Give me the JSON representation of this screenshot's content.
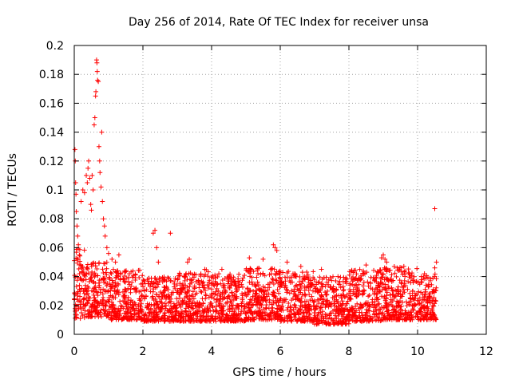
{
  "chart_data": {
    "type": "scatter",
    "title": "Day 256 of 2014, Rate Of TEC Index for receiver unsa",
    "xlabel": "GPS time / hours",
    "ylabel": "ROTI / TECUs",
    "xlim": [
      0,
      12
    ],
    "ylim": [
      0,
      0.2
    ],
    "xticks": [
      0,
      2,
      4,
      6,
      8,
      10,
      12
    ],
    "yticks": [
      0,
      0.02,
      0.04,
      0.06,
      0.08,
      0.1,
      0.12,
      0.14,
      0.16,
      0.18,
      0.2
    ],
    "xtick_labels": [
      "0",
      "2",
      "4",
      "6",
      "8",
      "10",
      "12"
    ],
    "ytick_labels": [
      "0",
      "0.02",
      "0.04",
      "0.06",
      "0.08",
      "0.1",
      "0.12",
      "0.14",
      "0.16",
      "0.18",
      "0.2"
    ],
    "grid": true,
    "marker": "+",
    "color": "#ff0000",
    "series": [
      {
        "name": "ROTI",
        "points": [
          [
            0.02,
            0.128
          ],
          [
            0.03,
            0.12
          ],
          [
            0.04,
            0.105
          ],
          [
            0.05,
            0.097
          ],
          [
            0.06,
            0.085
          ],
          [
            0.08,
            0.075
          ],
          [
            0.1,
            0.068
          ],
          [
            0.12,
            0.062
          ],
          [
            0.15,
            0.055
          ],
          [
            0.2,
            0.092
          ],
          [
            0.25,
            0.1
          ],
          [
            0.3,
            0.098
          ],
          [
            0.35,
            0.11
          ],
          [
            0.38,
            0.105
          ],
          [
            0.4,
            0.115
          ],
          [
            0.42,
            0.12
          ],
          [
            0.45,
            0.108
          ],
          [
            0.48,
            0.09
          ],
          [
            0.5,
            0.086
          ],
          [
            0.52,
            0.11
          ],
          [
            0.55,
            0.1
          ],
          [
            0.58,
            0.145
          ],
          [
            0.6,
            0.15
          ],
          [
            0.62,
            0.165
          ],
          [
            0.63,
            0.168
          ],
          [
            0.65,
            0.19
          ],
          [
            0.66,
            0.188
          ],
          [
            0.67,
            0.182
          ],
          [
            0.68,
            0.176
          ],
          [
            0.7,
            0.175
          ],
          [
            0.72,
            0.13
          ],
          [
            0.74,
            0.12
          ],
          [
            0.75,
            0.112
          ],
          [
            0.78,
            0.102
          ],
          [
            0.8,
            0.14
          ],
          [
            0.82,
            0.092
          ],
          [
            0.85,
            0.08
          ],
          [
            0.88,
            0.075
          ],
          [
            0.9,
            0.068
          ],
          [
            0.95,
            0.06
          ],
          [
            1.0,
            0.056
          ],
          [
            1.1,
            0.052
          ],
          [
            1.2,
            0.05
          ],
          [
            1.3,
            0.055
          ],
          [
            2.3,
            0.07
          ],
          [
            2.35,
            0.072
          ],
          [
            2.4,
            0.06
          ],
          [
            2.45,
            0.05
          ],
          [
            2.8,
            0.07
          ],
          [
            3.3,
            0.05
          ],
          [
            3.35,
            0.052
          ],
          [
            3.8,
            0.045
          ],
          [
            4.3,
            0.045
          ],
          [
            5.1,
            0.053
          ],
          [
            5.5,
            0.052
          ],
          [
            5.8,
            0.062
          ],
          [
            5.85,
            0.06
          ],
          [
            5.9,
            0.058
          ],
          [
            6.2,
            0.05
          ],
          [
            6.6,
            0.047
          ],
          [
            7.2,
            0.045
          ],
          [
            8.5,
            0.048
          ],
          [
            8.95,
            0.053
          ],
          [
            9.0,
            0.055
          ],
          [
            9.05,
            0.052
          ],
          [
            9.1,
            0.05
          ],
          [
            9.6,
            0.047
          ],
          [
            10.5,
            0.087
          ],
          [
            10.55,
            0.05
          ],
          [
            10.5,
            0.046
          ]
        ]
      }
    ],
    "baseline_band": [
      {
        "x0": 0.0,
        "x1": 0.3,
        "low": 0.011,
        "high": 0.06
      },
      {
        "x0": 0.3,
        "x1": 1.0,
        "low": 0.012,
        "high": 0.05
      },
      {
        "x0": 1.0,
        "x1": 2.0,
        "low": 0.01,
        "high": 0.045
      },
      {
        "x0": 2.0,
        "x1": 3.0,
        "low": 0.009,
        "high": 0.04
      },
      {
        "x0": 3.0,
        "x1": 4.0,
        "low": 0.009,
        "high": 0.045
      },
      {
        "x0": 4.0,
        "x1": 5.0,
        "low": 0.009,
        "high": 0.042
      },
      {
        "x0": 5.0,
        "x1": 6.0,
        "low": 0.01,
        "high": 0.046
      },
      {
        "x0": 6.0,
        "x1": 7.0,
        "low": 0.009,
        "high": 0.044
      },
      {
        "x0": 7.0,
        "x1": 8.0,
        "low": 0.007,
        "high": 0.04
      },
      {
        "x0": 8.0,
        "x1": 9.0,
        "low": 0.009,
        "high": 0.045
      },
      {
        "x0": 9.0,
        "x1": 10.0,
        "low": 0.01,
        "high": 0.047
      },
      {
        "x0": 10.0,
        "x1": 10.55,
        "low": 0.01,
        "high": 0.042
      }
    ]
  }
}
